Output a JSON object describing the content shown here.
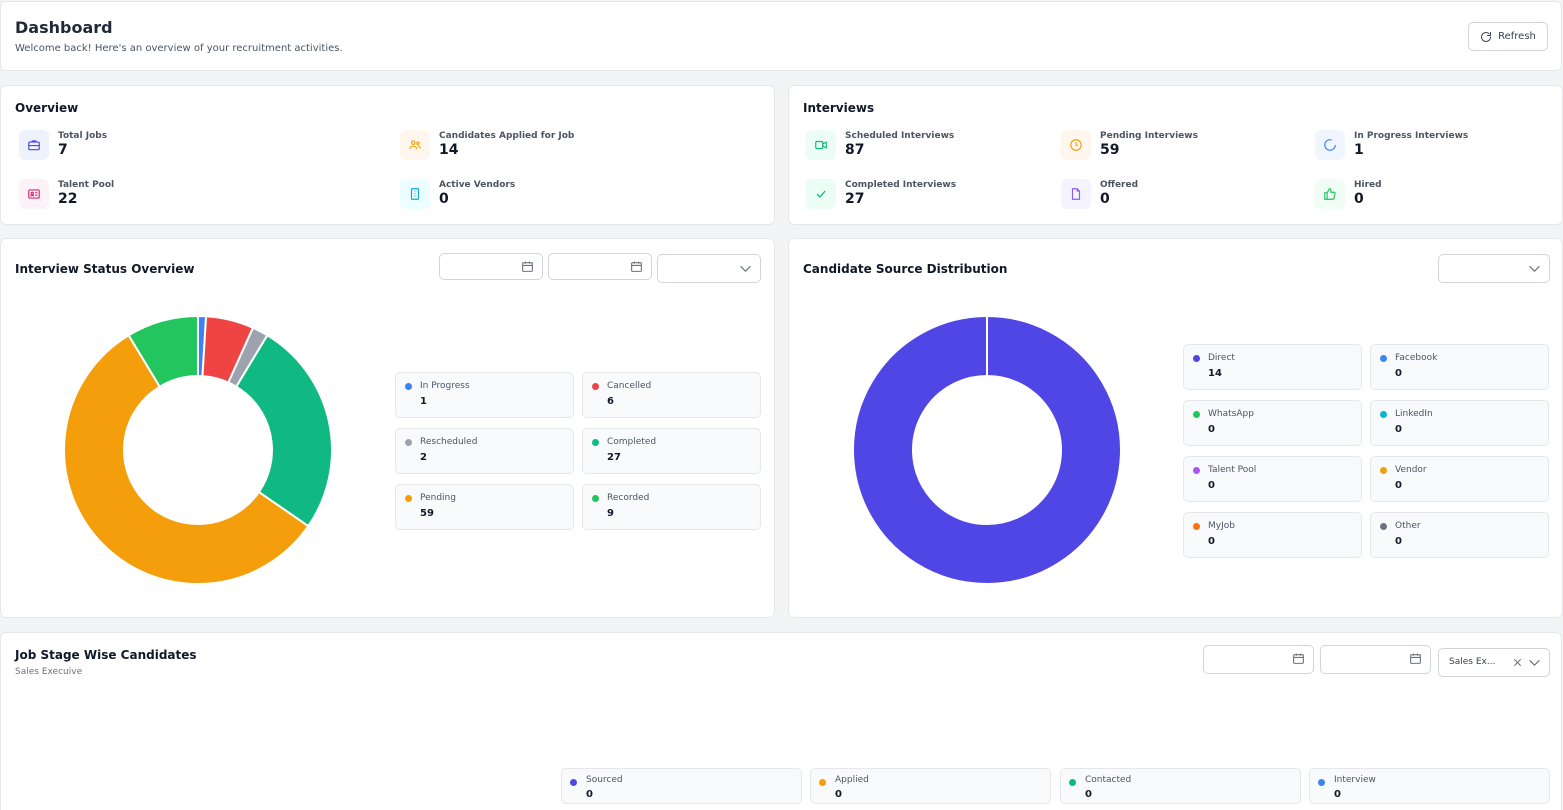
{
  "header": {
    "title": "Dashboard",
    "subtitle": "Welcome back! Here's an overview of your recruitment activities.",
    "refresh_label": "Refresh"
  },
  "overview": {
    "title": "Overview",
    "items": [
      {
        "label": "Total Jobs",
        "value": "7",
        "icon": "briefcase-icon",
        "color": "#4f46e5"
      },
      {
        "label": "Candidates Applied for Job",
        "value": "14",
        "icon": "users-icon",
        "color": "#f59e0b"
      },
      {
        "label": "Talent Pool",
        "value": "22",
        "icon": "id-card-icon",
        "color": "#db2777"
      },
      {
        "label": "Active Vendors",
        "value": "0",
        "icon": "building-icon",
        "color": "#0ea5e9"
      }
    ]
  },
  "interviews": {
    "title": "Interviews",
    "items": [
      {
        "label": "Scheduled Interviews",
        "value": "87",
        "icon": "video-icon",
        "color": "#10b981"
      },
      {
        "label": "Pending Interviews",
        "value": "59",
        "icon": "clock-icon",
        "color": "#f59e0b"
      },
      {
        "label": "In Progress Interviews",
        "value": "1",
        "icon": "loader-icon",
        "color": "#3b82f6"
      },
      {
        "label": "Completed Interviews",
        "value": "27",
        "icon": "check-icon",
        "color": "#10b981"
      },
      {
        "label": "Offered",
        "value": "0",
        "icon": "file-icon",
        "color": "#8b5cf6"
      },
      {
        "label": "Hired",
        "value": "0",
        "icon": "thumbs-up-icon",
        "color": "#22c55e"
      }
    ]
  },
  "interview_status": {
    "title": "Interview Status Overview",
    "chart_data": {
      "type": "pie",
      "categories": [
        "In Progress",
        "Cancelled",
        "Rescheduled",
        "Completed",
        "Pending",
        "Recorded"
      ],
      "values": [
        1,
        6,
        2,
        27,
        59,
        9
      ],
      "colors": [
        "#3b82f6",
        "#ef4444",
        "#9ca3af",
        "#10b981",
        "#f59e0b",
        "#22c55e"
      ],
      "donut": true
    }
  },
  "candidate_source": {
    "title": "Candidate Source Distribution",
    "chart_data": {
      "type": "pie",
      "categories": [
        "Direct",
        "Facebook",
        "WhatsApp",
        "LinkedIn",
        "Talent Pool",
        "Vendor",
        "MyJob",
        "Other"
      ],
      "values": [
        14,
        0,
        0,
        0,
        0,
        0,
        0,
        0
      ],
      "colors": [
        "#4f46e5",
        "#3b82f6",
        "#22c55e",
        "#06b6d4",
        "#a855f7",
        "#f59e0b",
        "#f97316",
        "#6b7280"
      ],
      "donut": true
    }
  },
  "job_stage": {
    "title": "Job Stage Wise Candidates",
    "subtitle": "Sales Execuive",
    "select_value": "Sales Ex...",
    "stages": [
      {
        "label": "Sourced",
        "value": "0",
        "color": "#4f46e5"
      },
      {
        "label": "Applied",
        "value": "0",
        "color": "#f59e0b"
      },
      {
        "label": "Contacted",
        "value": "0",
        "color": "#10b981"
      },
      {
        "label": "Interview",
        "value": "0",
        "color": "#3b82f6"
      }
    ]
  }
}
